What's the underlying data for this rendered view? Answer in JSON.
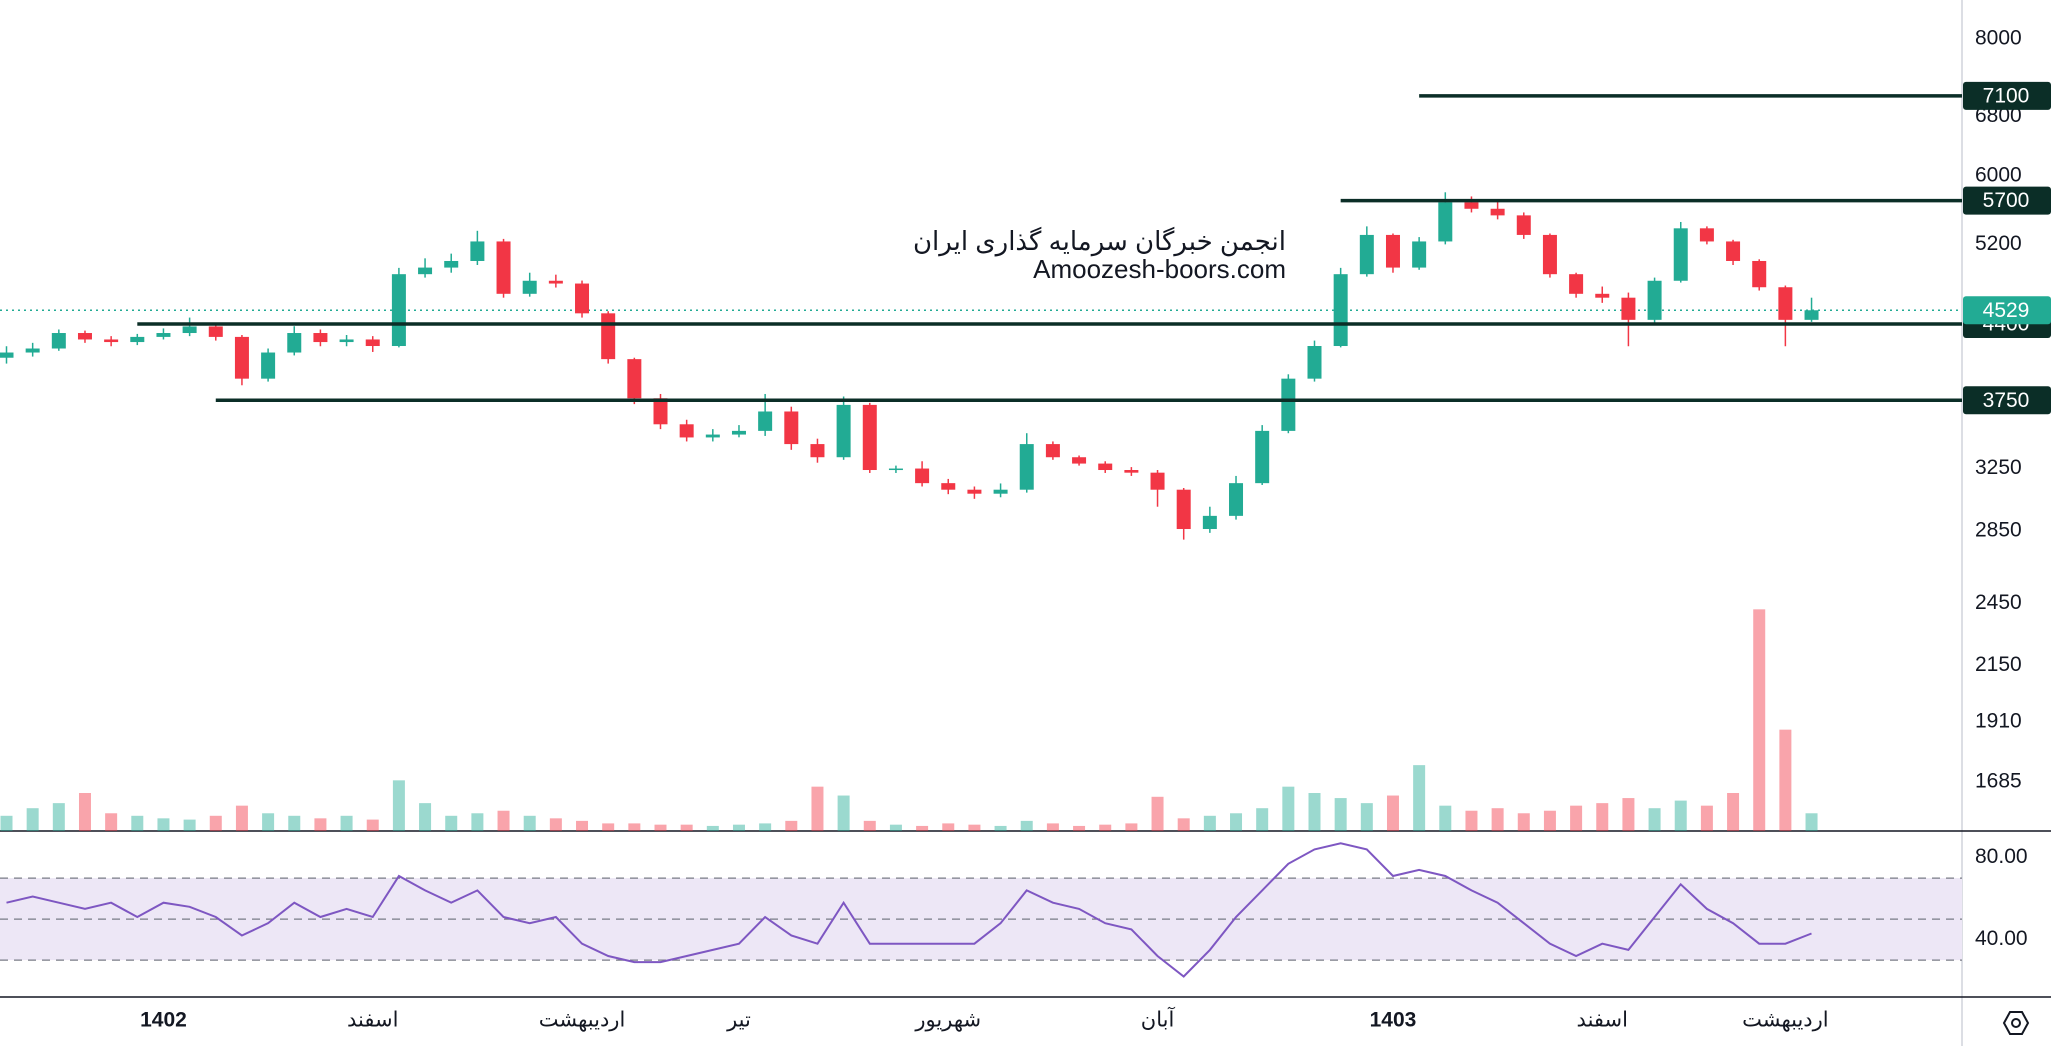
{
  "chart_data": {
    "type": "candlestick",
    "watermark": [
      "انجمن خبرگان سرمایه گذاری ایران",
      "Amoozesh-boors.com"
    ],
    "categories": [
      null,
      null,
      null,
      null,
      null,
      null,
      "1402",
      null,
      null,
      null,
      null,
      null,
      null,
      null,
      "اسفند",
      null,
      null,
      null,
      null,
      null,
      null,
      null,
      "اردیبهشت",
      null,
      null,
      null,
      null,
      null,
      "تیر",
      null,
      null,
      null,
      null,
      null,
      null,
      null,
      "شهریور",
      null,
      null,
      null,
      null,
      null,
      null,
      null,
      "آبان",
      null,
      null,
      null,
      null,
      null,
      null,
      null,
      null,
      "1403",
      null,
      null,
      null,
      null,
      null,
      null,
      null,
      "اسفند",
      null,
      null,
      null,
      null,
      null,
      null,
      "اردیبهشت",
      null
    ],
    "open": [
      4100,
      4145,
      4180,
      4318,
      4260,
      4237,
      4283,
      4318,
      4378,
      4283,
      3924,
      4145,
      4318,
      4237,
      4260,
      4202,
      4885,
      4953,
      5022,
      5232,
      4688,
      4818,
      4790,
      4500,
      4088,
      3766,
      3566,
      3469,
      3490,
      3517,
      3663,
      3421,
      3328,
      3714,
      3240,
      3250,
      3152,
      3109,
      3083,
      3109,
      3421,
      3328,
      3284,
      3240,
      3222,
      3109,
      2863,
      2943,
      3152,
      3517,
      3924,
      4202,
      4885,
      5304,
      4953,
      5232,
      5680,
      5603,
      5526,
      5304,
      4885,
      4688,
      4650,
      4439,
      4818,
      5378,
      5232,
      5022,
      4753,
      4439
    ],
    "high": [
      4200,
      4230,
      4350,
      4340,
      4290,
      4310,
      4360,
      4460,
      4400,
      4300,
      4180,
      4380,
      4350,
      4300,
      4290,
      4950,
      5050,
      5100,
      5350,
      5260,
      4900,
      4880,
      4820,
      4520,
      4100,
      3800,
      3600,
      3530,
      3560,
      3800,
      3700,
      3460,
      3780,
      3730,
      3270,
      3300,
      3180,
      3130,
      3150,
      3500,
      3440,
      3340,
      3300,
      3260,
      3240,
      3120,
      3000,
      3200,
      3560,
      3960,
      4250,
      4950,
      5400,
      5320,
      5280,
      5800,
      5750,
      5700,
      5560,
      5320,
      4900,
      4760,
      4700,
      4850,
      5450,
      5400,
      5250,
      5040,
      4770,
      4650
    ],
    "low": [
      4050,
      4110,
      4160,
      4230,
      4200,
      4210,
      4260,
      4290,
      4250,
      3870,
      3900,
      4120,
      4200,
      4200,
      4150,
      4190,
      4850,
      4900,
      4980,
      4650,
      4660,
      4750,
      4460,
      4050,
      3720,
      3530,
      3440,
      3440,
      3470,
      3480,
      3380,
      3290,
      3310,
      3220,
      3220,
      3130,
      3080,
      3050,
      3060,
      3090,
      3310,
      3270,
      3220,
      3200,
      3000,
      2800,
      2840,
      2920,
      3140,
      3500,
      3900,
      4190,
      4860,
      4900,
      4930,
      5200,
      5560,
      5480,
      5260,
      4850,
      4650,
      4600,
      4200,
      4400,
      4800,
      5200,
      4980,
      4720,
      4200,
      4420
    ],
    "close": [
      4145,
      4180,
      4318,
      4260,
      4237,
      4283,
      4318,
      4378,
      4283,
      3924,
      4145,
      4318,
      4237,
      4260,
      4202,
      4885,
      4953,
      5022,
      5232,
      4688,
      4818,
      4790,
      4500,
      4088,
      3766,
      3566,
      3469,
      3490,
      3517,
      3663,
      3421,
      3328,
      3714,
      3240,
      3250,
      3152,
      3109,
      3083,
      3109,
      3421,
      3328,
      3284,
      3240,
      3222,
      3109,
      2863,
      2943,
      3152,
      3517,
      3924,
      4202,
      4885,
      5304,
      4953,
      5232,
      5680,
      5603,
      5526,
      5304,
      4885,
      4688,
      4650,
      4439,
      4818,
      5378,
      5232,
      5022,
      4753,
      4439,
      4529
    ],
    "up_color": "#22ab94",
    "down_color": "#f23645",
    "ylim": [
      1520,
      8680
    ],
    "log_scale": true,
    "yticks": [
      8000,
      6800,
      6000,
      5200,
      3250,
      2850,
      2450,
      2150,
      1910,
      1685
    ],
    "levels": [
      {
        "value": 7100,
        "start": 54
      },
      {
        "value": 5700,
        "start": 51
      },
      {
        "value": 4400,
        "start": 5
      },
      {
        "value": 3750,
        "start": 8
      }
    ],
    "level_color": "#0b2e27",
    "last_price": 4529,
    "volume": [
      12,
      18,
      22,
      30,
      14,
      12,
      10,
      9,
      12,
      20,
      14,
      12,
      10,
      12,
      9,
      40,
      22,
      12,
      14,
      16,
      12,
      10,
      8,
      6,
      6,
      5,
      5,
      4,
      5,
      6,
      8,
      35,
      28,
      8,
      5,
      4,
      6,
      5,
      4,
      8,
      6,
      4,
      5,
      6,
      27,
      10,
      12,
      14,
      18,
      35,
      30,
      26,
      22,
      28,
      52,
      20,
      16,
      18,
      14,
      16,
      20,
      22,
      26,
      18,
      24,
      20,
      30,
      175,
      80,
      14
    ],
    "volume_ylim": [
      0,
      180
    ],
    "rsi": {
      "type": "line",
      "values": [
        58,
        61,
        58,
        55,
        58,
        51,
        58,
        56,
        51,
        42,
        48,
        58,
        51,
        55,
        51,
        71,
        64,
        58,
        64,
        51,
        48,
        51,
        38,
        32,
        29,
        29,
        32,
        35,
        38,
        51,
        42,
        38,
        58,
        38,
        38,
        38,
        38,
        38,
        48,
        64,
        58,
        55,
        48,
        45,
        32,
        22,
        35,
        51,
        64,
        77,
        84,
        87,
        84,
        71,
        74,
        71,
        64,
        58,
        48,
        38,
        32,
        38,
        35,
        51,
        67,
        55,
        48,
        38,
        38,
        43
      ],
      "color": "#7e57c2",
      "ylim": [
        12,
        92
      ],
      "yticks": [
        {
          "value": 80,
          "label": "80.00"
        },
        {
          "value": 40,
          "label": "40.00"
        }
      ],
      "bands": [
        70,
        50,
        30
      ],
      "band_color": "#ede7f6"
    }
  }
}
